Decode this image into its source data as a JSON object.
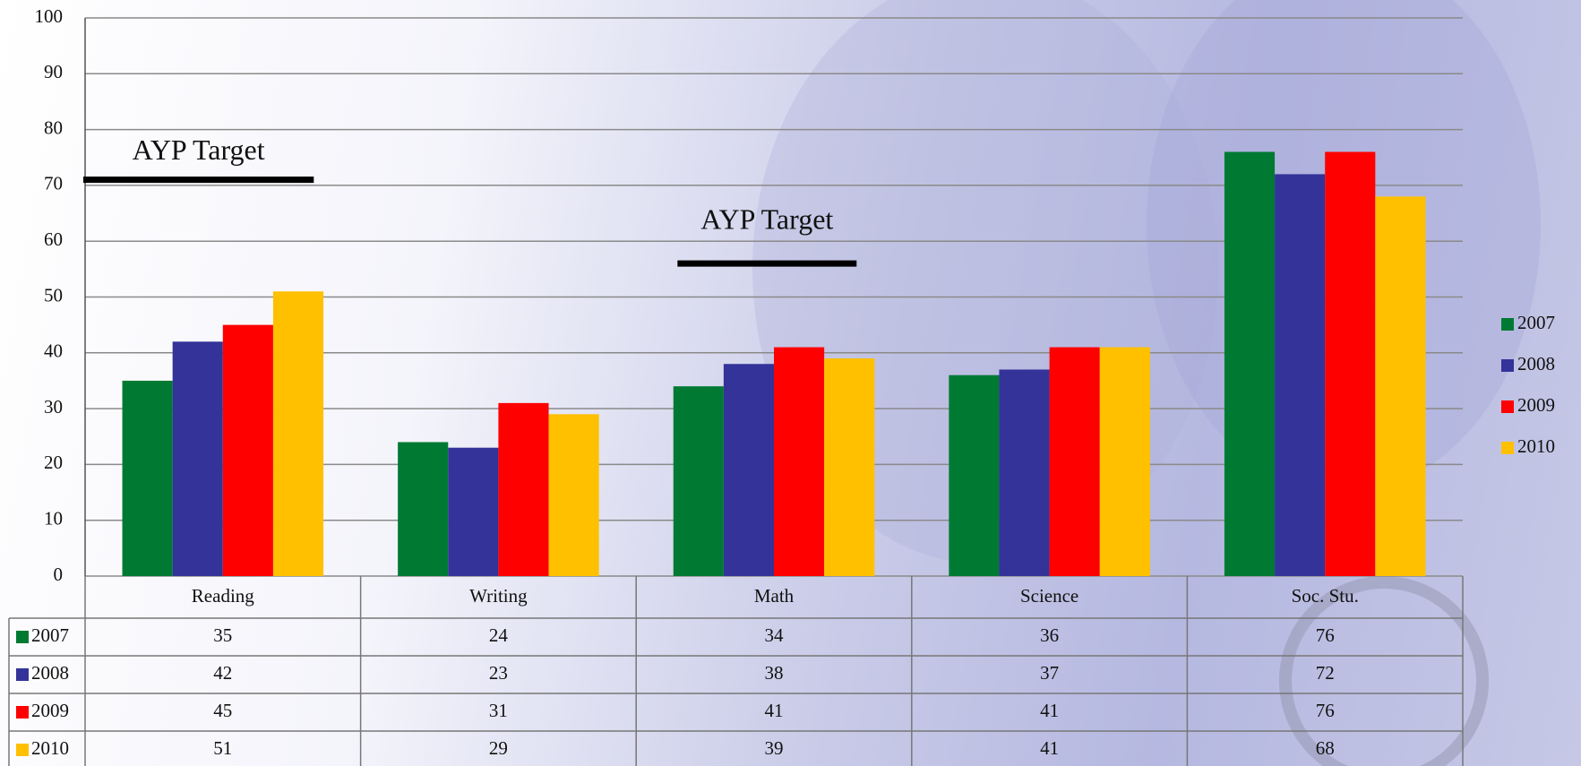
{
  "chart_data": {
    "type": "bar",
    "categories": [
      "Reading",
      "Writing",
      "Math",
      "Science",
      "Soc. Stu."
    ],
    "series": [
      {
        "name": "2007",
        "color": "#007a33",
        "values": [
          35,
          24,
          34,
          36,
          76
        ]
      },
      {
        "name": "2008",
        "color": "#333399",
        "values": [
          42,
          23,
          38,
          37,
          72
        ]
      },
      {
        "name": "2009",
        "color": "#ff0000",
        "values": [
          45,
          31,
          41,
          41,
          76
        ]
      },
      {
        "name": "2010",
        "color": "#ffc000",
        "values": [
          51,
          29,
          39,
          41,
          68
        ]
      }
    ],
    "ylim": [
      0,
      100
    ],
    "yticks": [
      0,
      10,
      20,
      30,
      40,
      50,
      60,
      70,
      80,
      90,
      100
    ],
    "grid": true,
    "legend": "right",
    "data_table": true,
    "annotations": [
      {
        "label": "AYP Target",
        "value": 71,
        "category": "Reading"
      },
      {
        "label": "AYP Target",
        "value": 56,
        "category": "Math"
      }
    ]
  }
}
